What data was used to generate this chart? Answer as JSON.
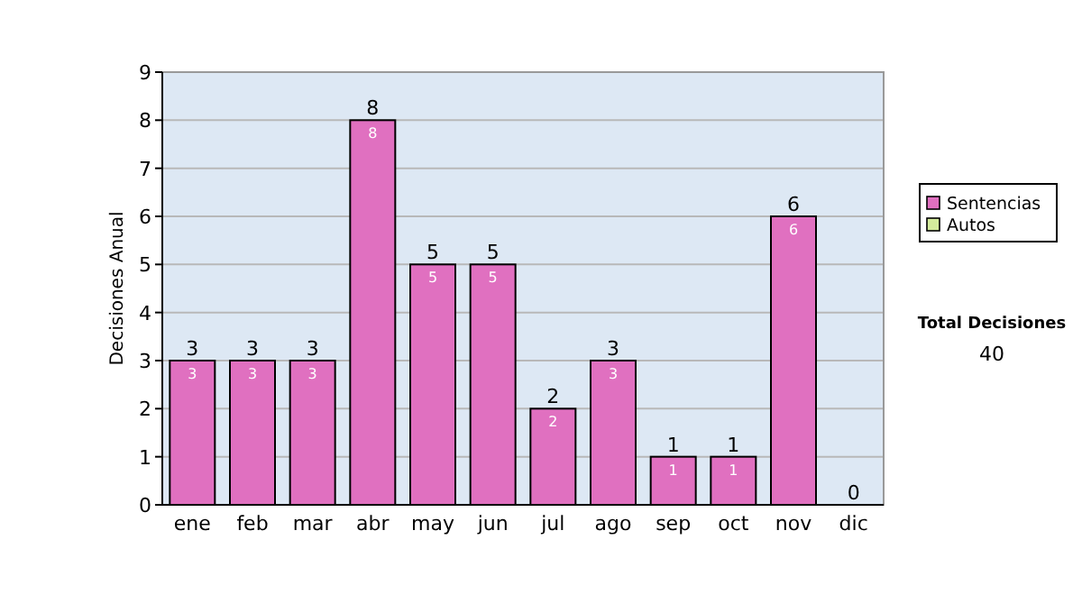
{
  "chart_data": {
    "type": "bar",
    "ylabel": "Decisiones Anual",
    "categories": [
      "ene",
      "feb",
      "mar",
      "abr",
      "may",
      "jun",
      "jul",
      "ago",
      "sep",
      "oct",
      "nov",
      "dic"
    ],
    "stacked": true,
    "series": [
      {
        "name": "Sentencias",
        "color": "#e070c0",
        "values": [
          3,
          3,
          3,
          8,
          5,
          5,
          2,
          3,
          1,
          1,
          6,
          0
        ],
        "value_labels": [
          "3",
          "3",
          "3",
          "8",
          "5",
          "5",
          "2",
          "3",
          "1",
          "1",
          "6",
          null
        ]
      },
      {
        "name": "Autos",
        "color": "#d4ec9c",
        "values": [
          0,
          0,
          0,
          0,
          0,
          0,
          0,
          0,
          0,
          0,
          0,
          0
        ]
      }
    ],
    "totals": [
      "3",
      "3",
      "3",
      "8",
      "5",
      "5",
      "2",
      "3",
      "1",
      "1",
      "6",
      "0"
    ],
    "ylim": [
      0,
      9
    ],
    "yticks": [
      0,
      1,
      2,
      3,
      4,
      5,
      6,
      7,
      8,
      9
    ],
    "grid": "y",
    "legend": "right",
    "annotations": [
      "Total Decisiones",
      "40"
    ]
  }
}
